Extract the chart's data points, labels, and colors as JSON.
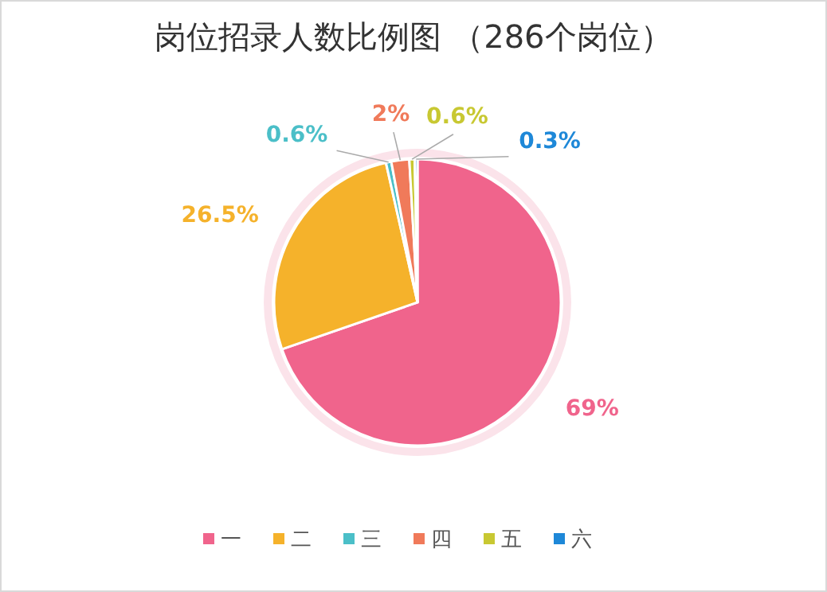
{
  "chart_data": {
    "type": "pie",
    "title": "岗位招录人数比例图 （286个岗位）",
    "categories": [
      "一",
      "二",
      "三",
      "四",
      "五",
      "六"
    ],
    "values": [
      69,
      26.5,
      0.6,
      2,
      0.6,
      0.3
    ],
    "value_labels": [
      "69%",
      "26.5%",
      "0.6%",
      "2%",
      "0.6%",
      "0.3%"
    ],
    "colors": [
      "#f0648c",
      "#f5b22b",
      "#4bbfc8",
      "#f07a5a",
      "#c8c832",
      "#1e88d8"
    ],
    "legend": "bottom"
  }
}
